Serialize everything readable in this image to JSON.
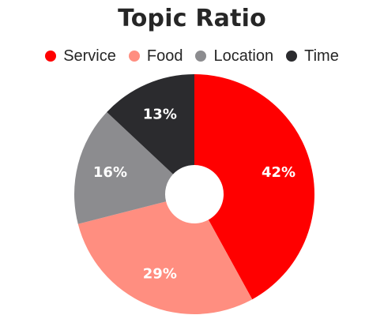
{
  "chart_data": {
    "type": "pie",
    "title": "Topic Ratio",
    "categories": [
      "Service",
      "Food",
      "Location",
      "Time"
    ],
    "values": [
      42,
      29,
      16,
      13
    ],
    "labels": [
      "42%",
      "29%",
      "16%",
      "13%"
    ],
    "colors": [
      "#ff0000",
      "#ff8e80",
      "#8c8c8f",
      "#2b2b2e"
    ],
    "donut": true,
    "legend": "top-center"
  }
}
